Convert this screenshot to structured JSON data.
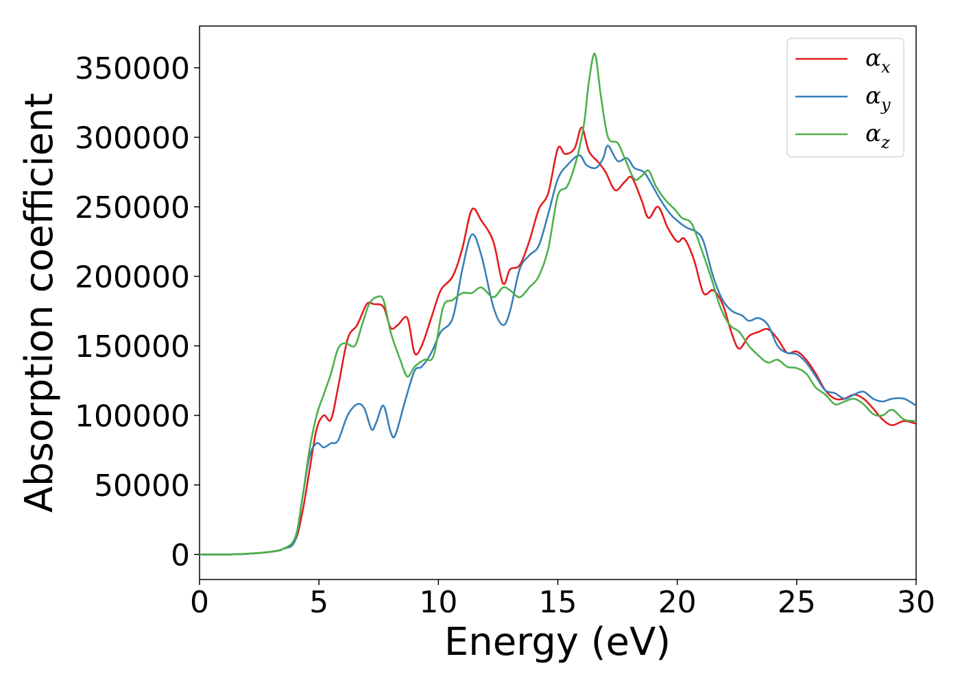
{
  "chart_data": {
    "type": "line",
    "title": "",
    "xlabel": "Energy (eV)",
    "ylabel": "Absorption coefficient",
    "xlim": [
      0,
      30
    ],
    "ylim": [
      -18000,
      380000
    ],
    "x_ticks": [
      0,
      5,
      10,
      15,
      20,
      25,
      30
    ],
    "y_ticks": [
      0,
      50000,
      100000,
      150000,
      200000,
      250000,
      300000,
      350000
    ],
    "grid": false,
    "legend_position": "top-right",
    "series": [
      {
        "name": "αx",
        "legend_symbol": "α",
        "legend_sub": "x",
        "color": "#e41a1c",
        "x": [
          0,
          1,
          2,
          3,
          3.5,
          4,
          4.3,
          4.6,
          4.9,
          5.2,
          5.5,
          5.8,
          6.2,
          6.6,
          7.0,
          7.3,
          7.7,
          8.0,
          8.3,
          8.7,
          9.0,
          9.3,
          9.7,
          10.1,
          10.6,
          11.0,
          11.4,
          11.8,
          12.3,
          12.7,
          13.0,
          13.4,
          13.8,
          14.2,
          14.6,
          15.0,
          15.3,
          15.7,
          16.0,
          16.3,
          16.7,
          17.0,
          17.4,
          17.8,
          18.1,
          18.5,
          18.8,
          19.2,
          19.6,
          20.0,
          20.3,
          20.7,
          21.1,
          21.5,
          21.9,
          22.3,
          22.6,
          23.0,
          23.4,
          23.8,
          24.2,
          24.6,
          25.0,
          25.4,
          25.8,
          26.2,
          26.6,
          27.0,
          27.4,
          27.8,
          28.2,
          28.6,
          29.0,
          29.5,
          30.0
        ],
        "y": [
          0,
          0,
          500,
          2000,
          4000,
          10000,
          30000,
          60000,
          90000,
          100000,
          97000,
          120000,
          155000,
          165000,
          180000,
          180000,
          178000,
          163000,
          165000,
          170000,
          145000,
          150000,
          170000,
          190000,
          200000,
          220000,
          248000,
          240000,
          225000,
          195000,
          205000,
          208000,
          225000,
          248000,
          260000,
          292000,
          288000,
          292000,
          307000,
          290000,
          282000,
          275000,
          262000,
          268000,
          271000,
          255000,
          242000,
          250000,
          235000,
          225000,
          227000,
          212000,
          188000,
          190000,
          180000,
          158000,
          148000,
          157000,
          160000,
          162000,
          155000,
          145000,
          146000,
          140000,
          130000,
          118000,
          112000,
          112000,
          115000,
          112000,
          105000,
          97000,
          93000,
          96000,
          94000
        ]
      },
      {
        "name": "αy",
        "legend_symbol": "α",
        "legend_sub": "y",
        "color": "#377eb8",
        "x": [
          0,
          1,
          2,
          3,
          3.5,
          4,
          4.3,
          4.6,
          4.9,
          5.2,
          5.5,
          5.8,
          6.2,
          6.6,
          6.9,
          7.2,
          7.4,
          7.7,
          8.0,
          8.2,
          8.6,
          9.0,
          9.3,
          9.7,
          10.1,
          10.6,
          11.0,
          11.4,
          11.8,
          12.3,
          12.7,
          13.0,
          13.4,
          13.8,
          14.2,
          14.6,
          15.0,
          15.4,
          15.9,
          16.2,
          16.6,
          16.9,
          17.1,
          17.5,
          17.9,
          18.2,
          18.6,
          18.9,
          19.3,
          19.7,
          20.0,
          20.4,
          20.8,
          21.1,
          21.5,
          21.9,
          22.3,
          22.7,
          23.0,
          23.4,
          23.8,
          24.2,
          24.6,
          25.0,
          25.4,
          25.8,
          26.2,
          26.6,
          27.0,
          27.4,
          27.8,
          28.2,
          28.6,
          29.0,
          29.5,
          30.0
        ],
        "y": [
          0,
          0,
          500,
          2000,
          4000,
          10000,
          40000,
          70000,
          80000,
          77000,
          80000,
          82000,
          100000,
          108000,
          105000,
          90000,
          95000,
          107000,
          88000,
          86000,
          110000,
          132000,
          135000,
          145000,
          160000,
          170000,
          205000,
          230000,
          215000,
          178000,
          165000,
          175000,
          205000,
          215000,
          222000,
          245000,
          270000,
          280000,
          287000,
          280000,
          278000,
          285000,
          294000,
          283000,
          285000,
          278000,
          275000,
          267000,
          255000,
          245000,
          240000,
          235000,
          232000,
          225000,
          200000,
          183000,
          175000,
          172000,
          168000,
          170000,
          165000,
          150000,
          145000,
          144000,
          138000,
          128000,
          118000,
          116000,
          112000,
          115000,
          117000,
          112000,
          110000,
          112000,
          112000,
          107000
        ]
      },
      {
        "name": "αz",
        "legend_symbol": "α",
        "legend_sub": "z",
        "color": "#4daf4a",
        "x": [
          0,
          1,
          2,
          3,
          3.5,
          4,
          4.3,
          4.6,
          4.9,
          5.2,
          5.5,
          5.8,
          6.1,
          6.5,
          6.8,
          7.1,
          7.4,
          7.7,
          8.0,
          8.4,
          8.7,
          9.0,
          9.4,
          9.8,
          10.2,
          10.6,
          11.0,
          11.4,
          11.8,
          12.3,
          12.7,
          13.0,
          13.4,
          13.8,
          14.2,
          14.6,
          15.0,
          15.4,
          15.8,
          16.1,
          16.3,
          16.55,
          16.8,
          17.1,
          17.5,
          17.8,
          18.2,
          18.5,
          18.8,
          19.1,
          19.5,
          19.9,
          20.2,
          20.6,
          21.0,
          21.4,
          21.8,
          22.2,
          22.6,
          23.0,
          23.4,
          23.8,
          24.2,
          24.6,
          25.0,
          25.4,
          25.8,
          26.2,
          26.6,
          27.0,
          27.4,
          27.8,
          28.2,
          28.6,
          29.0,
          29.5,
          30.0
        ],
        "y": [
          0,
          0,
          500,
          2000,
          4000,
          12000,
          40000,
          75000,
          100000,
          115000,
          130000,
          148000,
          152000,
          150000,
          165000,
          180000,
          185000,
          183000,
          160000,
          140000,
          128000,
          135000,
          140000,
          143000,
          178000,
          183000,
          188000,
          188000,
          192000,
          185000,
          192000,
          190000,
          185000,
          192000,
          200000,
          220000,
          258000,
          265000,
          285000,
          310000,
          340000,
          360000,
          330000,
          300000,
          296000,
          285000,
          270000,
          272000,
          276000,
          265000,
          255000,
          248000,
          242000,
          238000,
          220000,
          200000,
          178000,
          165000,
          160000,
          150000,
          143000,
          138000,
          140000,
          135000,
          134000,
          130000,
          120000,
          115000,
          108000,
          110000,
          112000,
          108000,
          101000,
          100000,
          104000,
          97000,
          96000
        ]
      }
    ]
  }
}
